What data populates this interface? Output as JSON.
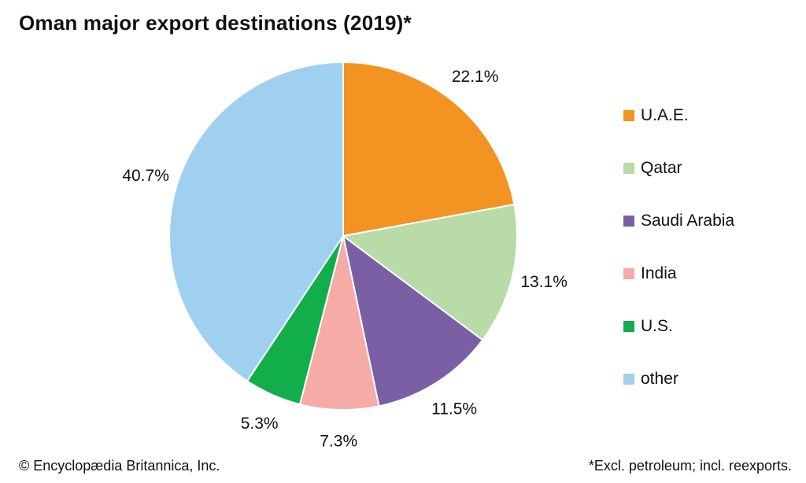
{
  "chart_data": {
    "type": "pie",
    "title": "Oman major export destinations (2019)*",
    "categories": [
      "U.A.E.",
      "Qatar",
      "Saudi Arabia",
      "India",
      "U.S.",
      "other"
    ],
    "values": [
      22.1,
      13.1,
      11.5,
      7.3,
      5.3,
      40.7
    ],
    "value_labels": [
      "22.1%",
      "13.1%",
      "11.5%",
      "7.3%",
      "5.3%",
      "40.7%"
    ],
    "colors": [
      "#f39322",
      "#b8dba7",
      "#7a5fa5",
      "#f5aba6",
      "#12ae4b",
      "#9fd0ef"
    ],
    "start_angle": "12 o'clock",
    "direction": "clockwise",
    "legend_position": "right"
  },
  "footer": {
    "credit": "© Encyclopædia Britannica, Inc.",
    "note": "*Excl. petroleum; incl. reexports."
  }
}
